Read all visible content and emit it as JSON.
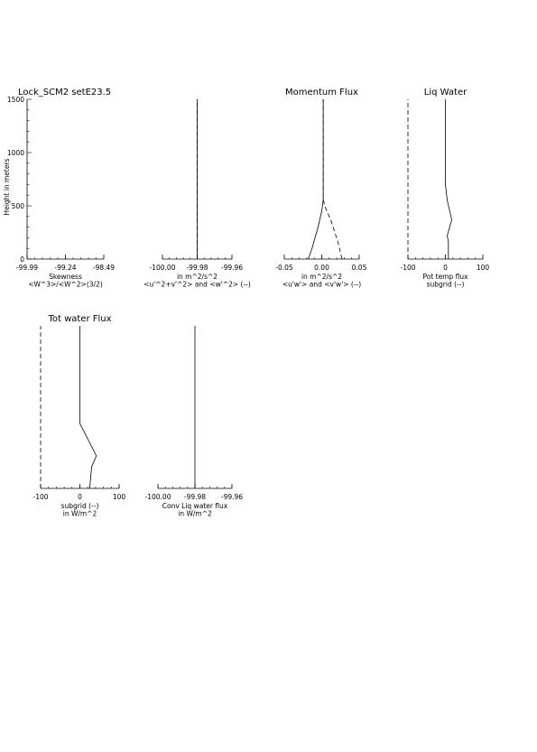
{
  "page": {
    "title": "Lock_SCM2 setE23.5",
    "ylabel": "Height in meters"
  },
  "chart_data": [
    {
      "type": "line",
      "title": "",
      "xlabel": [
        "Skewness",
        "<W^3>/<W^2>(3/2)"
      ],
      "xlim": [
        -99.99,
        -98.49
      ],
      "xticks": [
        -99.99,
        -99.24,
        -98.49
      ],
      "xtick_labels": [
        "-99.99",
        "-99.24",
        "-98.49"
      ],
      "ylim": [
        0,
        1500
      ],
      "yticks": [
        0,
        500,
        1000,
        1500
      ],
      "ytick_labels": [
        "0",
        "500",
        "1000",
        "1500"
      ],
      "series": []
    },
    {
      "type": "line",
      "title": "",
      "xlabel": [
        "in m^2/s^2",
        "<u'^2+v'^2> and <w'^2> (--)"
      ],
      "xlim": [
        -100.0,
        -99.96
      ],
      "xticks": [
        -100.0,
        -99.98,
        -99.96
      ],
      "xtick_labels": [
        "-100.00",
        "-99.98",
        "-99.96"
      ],
      "ylim": [
        0,
        1500
      ],
      "series": [
        {
          "style": "dashed",
          "x": [
            -99.98,
            -99.98
          ],
          "y": [
            0,
            1500
          ]
        },
        {
          "style": "solid",
          "x": [
            -99.98,
            -99.98
          ],
          "y": [
            0,
            1500
          ]
        }
      ]
    },
    {
      "type": "line",
      "title": "Momentum Flux",
      "xlabel": [
        "in m^2/s^2",
        "<u'w'> and <v'w'> (--)"
      ],
      "xlim": [
        -0.05,
        0.05
      ],
      "xticks": [
        -0.05,
        0.0,
        0.05
      ],
      "xtick_labels": [
        "-0.05",
        "0.00",
        "0.05"
      ],
      "ylim": [
        0,
        1500
      ],
      "series": [
        {
          "style": "solid",
          "x": [
            -0.018,
            -0.013,
            -0.005,
            0.0,
            0.002,
            0.002,
            0.002
          ],
          "y": [
            0,
            100,
            300,
            450,
            560,
            700,
            1500
          ]
        },
        {
          "style": "dashed",
          "x": [
            0.027,
            0.022,
            0.013,
            0.005,
            0.002,
            0.002
          ],
          "y": [
            0,
            150,
            350,
            480,
            560,
            1500
          ]
        }
      ]
    },
    {
      "type": "line",
      "title": "Liq Water",
      "xlabel": [
        "Pot temp flux",
        "subgrid (--)"
      ],
      "xlim": [
        -100,
        100
      ],
      "xticks": [
        -100,
        0,
        100
      ],
      "xtick_labels": [
        "-100",
        "0",
        "100"
      ],
      "ylim": [
        0,
        1500
      ],
      "series": [
        {
          "style": "dashed",
          "x": [
            -100,
            -100
          ],
          "y": [
            0,
            1500
          ]
        },
        {
          "style": "solid",
          "x": [
            8,
            8,
            5,
            17,
            5,
            0,
            0,
            0
          ],
          "y": [
            0,
            160,
            220,
            370,
            550,
            700,
            900,
            1500
          ]
        }
      ]
    },
    {
      "type": "line",
      "title": "Tot water Flux",
      "xlabel": [
        "subgrid (--)",
        "in W/m^2"
      ],
      "xlim": [
        -100,
        100
      ],
      "xticks": [
        -100,
        0,
        100
      ],
      "xtick_labels": [
        "-100",
        "0",
        "100"
      ],
      "ylim": [
        0,
        1500
      ],
      "series": [
        {
          "style": "dashed",
          "x": [
            -100,
            -100
          ],
          "y": [
            0,
            1500
          ]
        },
        {
          "style": "solid",
          "x": [
            25,
            30,
            42,
            0,
            0,
            0
          ],
          "y": [
            0,
            200,
            300,
            600,
            700,
            1500
          ]
        }
      ]
    },
    {
      "type": "line",
      "title": "",
      "xlabel": [
        "Conv Liq water flux",
        "in W/m^2"
      ],
      "xlim": [
        -100.0,
        -99.96
      ],
      "xticks": [
        -100.0,
        -99.98,
        -99.96
      ],
      "xtick_labels": [
        "-100.00",
        "-99.98",
        "-99.96"
      ],
      "ylim": [
        0,
        1500
      ],
      "series": [
        {
          "style": "solid",
          "x": [
            -99.98,
            -99.98
          ],
          "y": [
            0,
            1500
          ]
        }
      ]
    }
  ]
}
